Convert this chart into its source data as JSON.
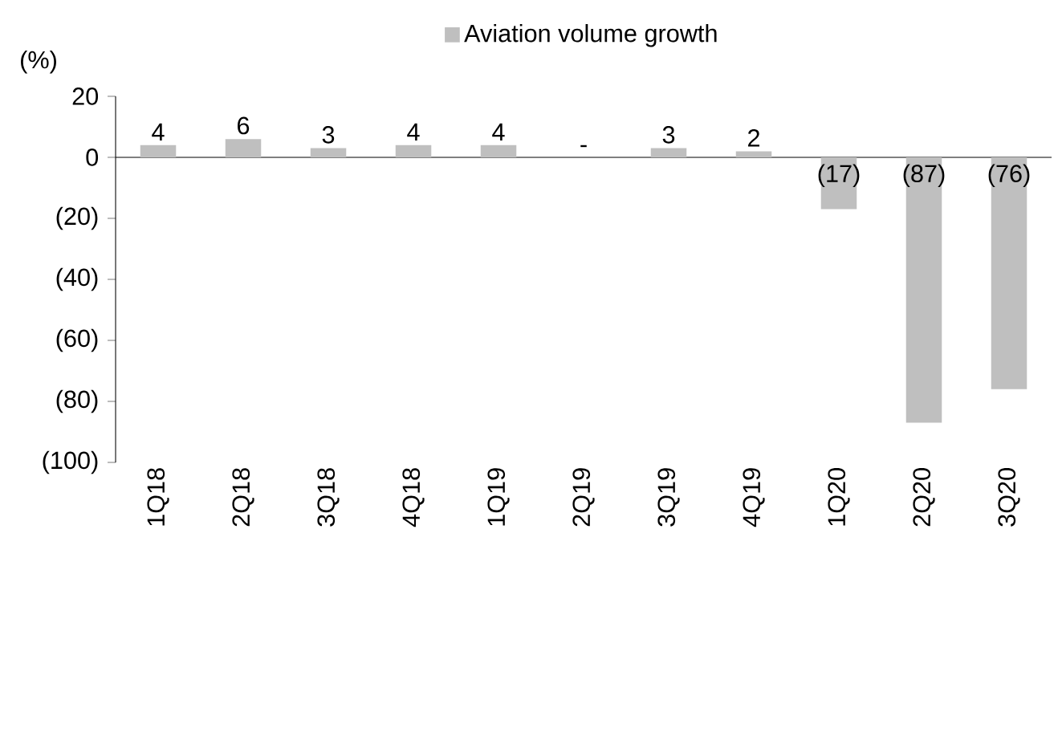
{
  "chart_data": {
    "type": "bar",
    "ylabel": "(%)",
    "legend": "top",
    "categories": [
      "1Q18",
      "2Q18",
      "3Q18",
      "4Q18",
      "1Q19",
      "2Q19",
      "3Q19",
      "4Q19",
      "1Q20",
      "2Q20",
      "3Q20"
    ],
    "series": [
      {
        "name": "Aviation volume growth",
        "color": "#bfbfbf",
        "values": [
          4,
          6,
          3,
          4,
          4,
          0,
          3,
          2,
          -17,
          -87,
          -76
        ],
        "value_labels": [
          "4",
          "6",
          "3",
          "4",
          "4",
          "-",
          "3",
          "2",
          "(17)",
          "(87)",
          "(76)"
        ]
      }
    ],
    "ylim": [
      -100,
      20
    ],
    "yticks": [
      20,
      0,
      {
        "value": -20,
        "label": "(20)"
      },
      {
        "value": -40,
        "label": "(40)"
      },
      {
        "value": -60,
        "label": "(60)"
      },
      {
        "value": -80,
        "label": "(80)"
      },
      {
        "value": -100,
        "label": "(100)"
      }
    ]
  }
}
